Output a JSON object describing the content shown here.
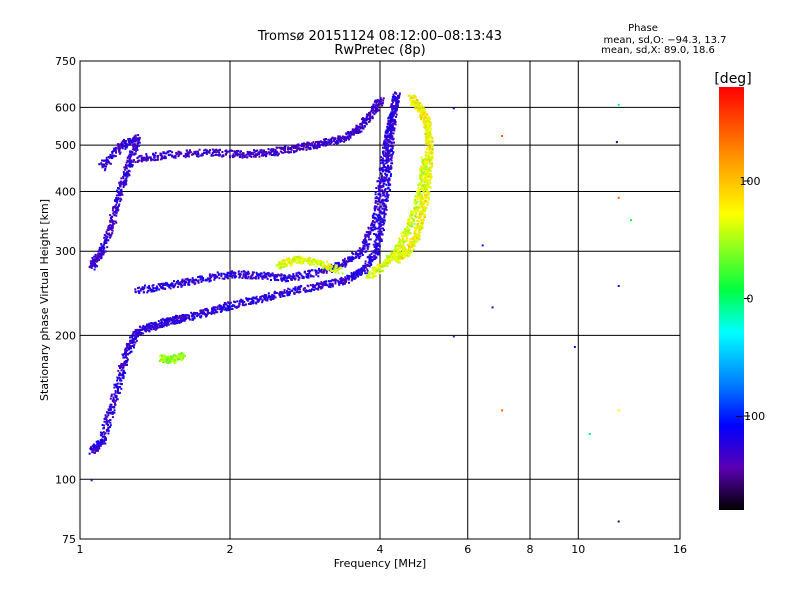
{
  "chart_data": {
    "type": "scatter",
    "title": "Tromsø 20151124 08:12:00–08:13:43",
    "subtitle": "RwPretec (8p)",
    "xlabel": "Frequency [MHz]",
    "ylabel": "Stationary phase Virtual Height [km]",
    "x_scale": "log",
    "y_scale": "log",
    "xlim": [
      1,
      16
    ],
    "ylim": [
      75,
      750
    ],
    "x_ticks": [
      1,
      2,
      4,
      6,
      8,
      10,
      16
    ],
    "x_tick_labels": [
      "1",
      "2",
      "4",
      "6",
      "8",
      "10",
      "16"
    ],
    "y_ticks": [
      75,
      100,
      200,
      300,
      400,
      500,
      600,
      750
    ],
    "y_tick_labels": [
      "75",
      "100",
      "200",
      "300",
      "400",
      "500",
      "600",
      "750"
    ],
    "grid": true,
    "legend_text": {
      "title": "Phase",
      "line1": "mean, sd,O: −94.3, 13.7",
      "line2": "mean, sd,X:  89.0, 18.6"
    },
    "colorbar": {
      "label": "[deg]",
      "ticks": [
        100,
        0,
        -100
      ],
      "tick_labels": [
        "100",
        "0",
        "−100"
      ],
      "range": [
        -180,
        180
      ]
    },
    "traces": [
      {
        "phase": -100,
        "points": [
          [
            1.05,
            115
          ],
          [
            1.1,
            120
          ],
          [
            1.15,
            140
          ],
          [
            1.2,
            165
          ],
          [
            1.25,
            190
          ],
          [
            1.3,
            205
          ],
          [
            1.4,
            210
          ],
          [
            1.5,
            215
          ],
          [
            1.6,
            218
          ],
          [
            1.8,
            225
          ],
          [
            2.0,
            232
          ],
          [
            2.3,
            240
          ],
          [
            2.6,
            248
          ],
          [
            3.0,
            255
          ],
          [
            3.4,
            262
          ],
          [
            3.7,
            275
          ],
          [
            3.9,
            300
          ],
          [
            4.0,
            340
          ],
          [
            4.1,
            400
          ],
          [
            4.15,
            470
          ],
          [
            4.2,
            540
          ],
          [
            4.25,
            600
          ],
          [
            4.3,
            640
          ]
        ]
      },
      {
        "phase": -100,
        "points": [
          [
            1.3,
            250
          ],
          [
            1.5,
            255
          ],
          [
            1.7,
            262
          ],
          [
            2.0,
            270
          ],
          [
            2.3,
            268
          ],
          [
            2.6,
            265
          ],
          [
            3.0,
            272
          ],
          [
            3.4,
            285
          ],
          [
            3.7,
            305
          ],
          [
            3.9,
            350
          ],
          [
            4.0,
            420
          ],
          [
            4.1,
            500
          ],
          [
            4.2,
            580
          ]
        ]
      },
      {
        "phase": -110,
        "points": [
          [
            1.3,
            470
          ],
          [
            1.5,
            480
          ],
          [
            1.8,
            485
          ],
          [
            2.1,
            480
          ],
          [
            2.4,
            485
          ],
          [
            2.7,
            495
          ],
          [
            3.0,
            505
          ],
          [
            3.3,
            515
          ],
          [
            3.6,
            540
          ],
          [
            3.8,
            580
          ],
          [
            4.0,
            625
          ]
        ]
      },
      {
        "phase": -105,
        "points": [
          [
            1.05,
            280
          ],
          [
            1.1,
            300
          ],
          [
            1.15,
            340
          ],
          [
            1.2,
            400
          ],
          [
            1.25,
            460
          ],
          [
            1.3,
            520
          ],
          [
            1.2,
            500
          ],
          [
            1.1,
            450
          ]
        ]
      },
      {
        "phase": 100,
        "points": [
          [
            4.3,
            290
          ],
          [
            4.5,
            300
          ],
          [
            4.7,
            320
          ],
          [
            4.85,
            360
          ],
          [
            4.95,
            410
          ],
          [
            5.0,
            460
          ],
          [
            5.0,
            520
          ],
          [
            4.95,
            560
          ],
          [
            4.8,
            600
          ],
          [
            4.6,
            630
          ]
        ]
      },
      {
        "phase": 90,
        "points": [
          [
            3.8,
            268
          ],
          [
            4.1,
            285
          ],
          [
            4.3,
            300
          ],
          [
            4.5,
            330
          ],
          [
            4.7,
            370
          ],
          [
            4.85,
            420
          ],
          [
            4.9,
            470
          ]
        ]
      },
      {
        "phase": 90,
        "points": [
          [
            2.5,
            280
          ],
          [
            2.7,
            290
          ],
          [
            3.0,
            285
          ],
          [
            3.3,
            275
          ]
        ]
      },
      {
        "phase": 70,
        "points": [
          [
            1.45,
            180
          ],
          [
            1.5,
            178
          ],
          [
            1.6,
            182
          ]
        ]
      }
    ],
    "isolated_points": [
      {
        "x": 1.05,
        "y": 100,
        "phase": -120
      },
      {
        "x": 5.6,
        "y": 600,
        "phase": -100
      },
      {
        "x": 5.6,
        "y": 200,
        "phase": -110
      },
      {
        "x": 6.4,
        "y": 310,
        "phase": -100
      },
      {
        "x": 6.7,
        "y": 230,
        "phase": -100
      },
      {
        "x": 7.0,
        "y": 525,
        "phase": 150
      },
      {
        "x": 7.0,
        "y": 140,
        "phase": 150
      },
      {
        "x": 9.8,
        "y": 190,
        "phase": -110
      },
      {
        "x": 10.5,
        "y": 125,
        "phase": 20
      },
      {
        "x": 12.0,
        "y": 610,
        "phase": 20
      },
      {
        "x": 11.9,
        "y": 510,
        "phase": -150
      },
      {
        "x": 12.0,
        "y": 390,
        "phase": 150
      },
      {
        "x": 12.0,
        "y": 255,
        "phase": -100
      },
      {
        "x": 12.0,
        "y": 140,
        "phase": 100
      },
      {
        "x": 12.0,
        "y": 82,
        "phase": -150
      },
      {
        "x": 12.7,
        "y": 350,
        "phase": 30
      }
    ]
  }
}
